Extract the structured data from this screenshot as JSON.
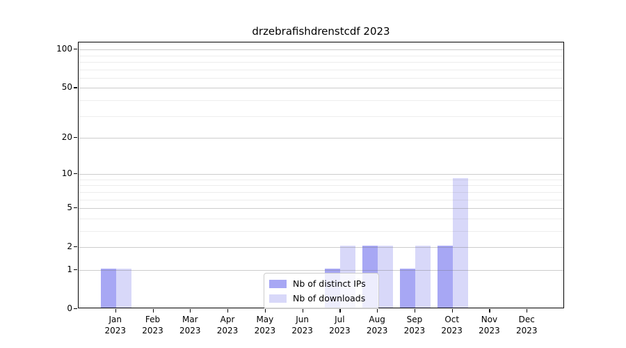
{
  "chart_data": {
    "type": "bar",
    "title": "drzebrafishdrenstcdf 2023",
    "categories": [
      "Jan 2023",
      "Feb 2023",
      "Mar 2023",
      "Apr 2023",
      "May 2023",
      "Jun 2023",
      "Jul 2023",
      "Aug 2023",
      "Sep 2023",
      "Oct 2023",
      "Nov 2023",
      "Dec 2023"
    ],
    "series": [
      {
        "name": "Nb of distinct IPs",
        "color": "#a7a7f4",
        "values": [
          1,
          0,
          0,
          0,
          0,
          0,
          1,
          2,
          1,
          2,
          0,
          0
        ]
      },
      {
        "name": "Nb of downloads",
        "color": "#d8d8f9",
        "values": [
          1,
          0,
          0,
          0,
          0,
          0,
          2,
          2,
          2,
          9,
          0,
          0
        ]
      }
    ],
    "yscale": "log1p",
    "ylim": [
      0,
      113.5
    ],
    "yticks": [
      0,
      1,
      2,
      5,
      10,
      20,
      50,
      100
    ],
    "yticks_minor": [
      3,
      4,
      6,
      7,
      8,
      9,
      30,
      40,
      60,
      70,
      80,
      90
    ],
    "grid": true,
    "legend_position": "lower center"
  }
}
